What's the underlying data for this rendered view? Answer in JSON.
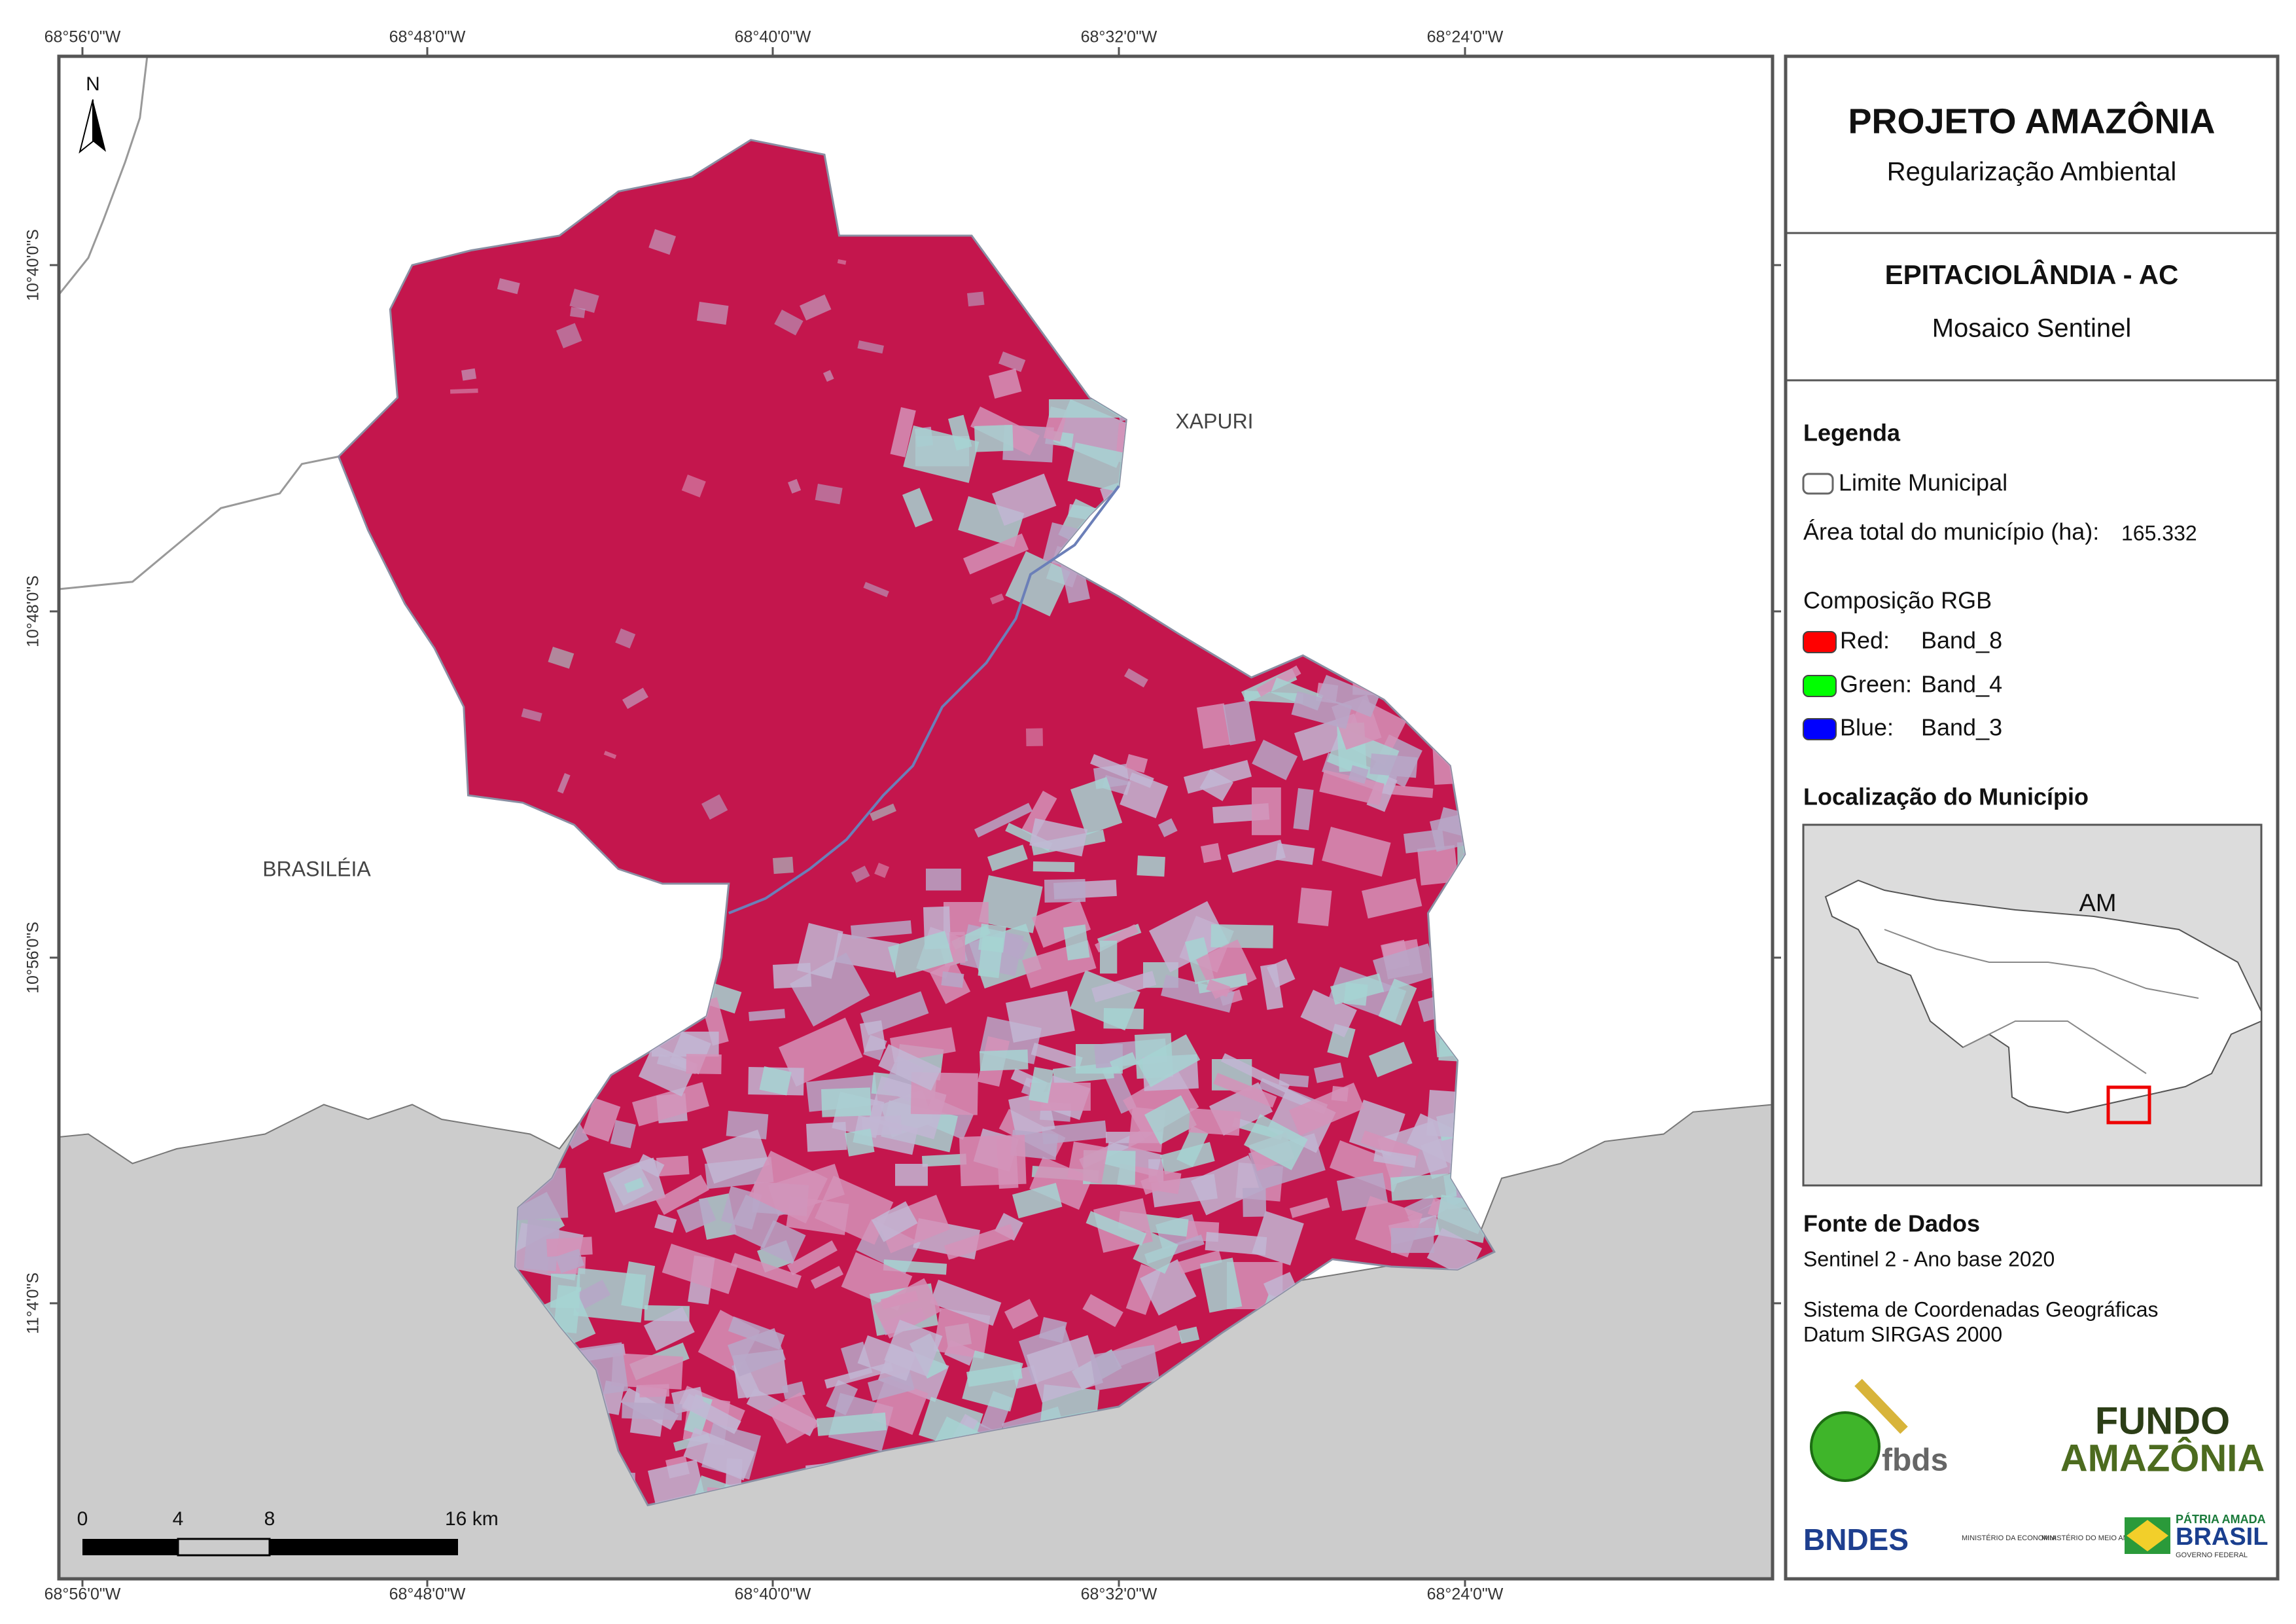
{
  "header": {
    "title": "PROJETO AMAZÔNIA",
    "subtitle": "Regularização Ambiental"
  },
  "municipality": {
    "name": "EPITACIOLÂNDIA - AC",
    "product": "Mosaico Sentinel"
  },
  "coordinates": {
    "longitude": [
      "68°56'0\"W",
      "68°48'0\"W",
      "68°40'0\"W",
      "68°32'0\"W",
      "68°24'0\"W"
    ],
    "latitude": [
      "10°40'0\"S",
      "10°48'0\"S",
      "10°56'0\"S",
      "11°4'0\"S"
    ]
  },
  "map_labels": {
    "north": "N",
    "neighbors": [
      "XAPURI",
      "BRASILÉIA"
    ]
  },
  "scale_bar": {
    "labels": [
      "0",
      "4",
      "8",
      "16 km"
    ]
  },
  "legend": {
    "title": "Legenda",
    "boundary": "Limite Municipal",
    "area_label": "Área total do município (ha):",
    "area_value": "165.332",
    "rgb_title": "Composição RGB",
    "bands": [
      {
        "channel": "Red:",
        "band": "Band_8",
        "color": "#ff0000"
      },
      {
        "channel": "Green:",
        "band": "Band_4",
        "color": "#00ff00"
      },
      {
        "channel": "Blue:",
        "band": "Band_3",
        "color": "#0000ff"
      }
    ]
  },
  "location": {
    "title": "Localização do Município",
    "state_label": "AM"
  },
  "data_sources": {
    "title": "Fonte de Dados",
    "source": "Sentinel 2 - Ano base 2020",
    "crs_line1": "Sistema de Coordenadas Geográficas",
    "crs_line2": "Datum SIRGAS 2000"
  },
  "logos": {
    "fbds": "fbds",
    "fundo_line1": "FUNDO",
    "fundo_line2": "AMAZÔNIA",
    "bndes": "BNDES",
    "ministry1": "MINISTÉRIO DA ECONOMIA",
    "ministry2": "MINISTÉRIO DO MEIO AMBIENTE",
    "gov_line1": "PÁTRIA AMADA",
    "gov_line2": "BRASIL",
    "gov_line3": "GOVERNO FEDERAL"
  }
}
